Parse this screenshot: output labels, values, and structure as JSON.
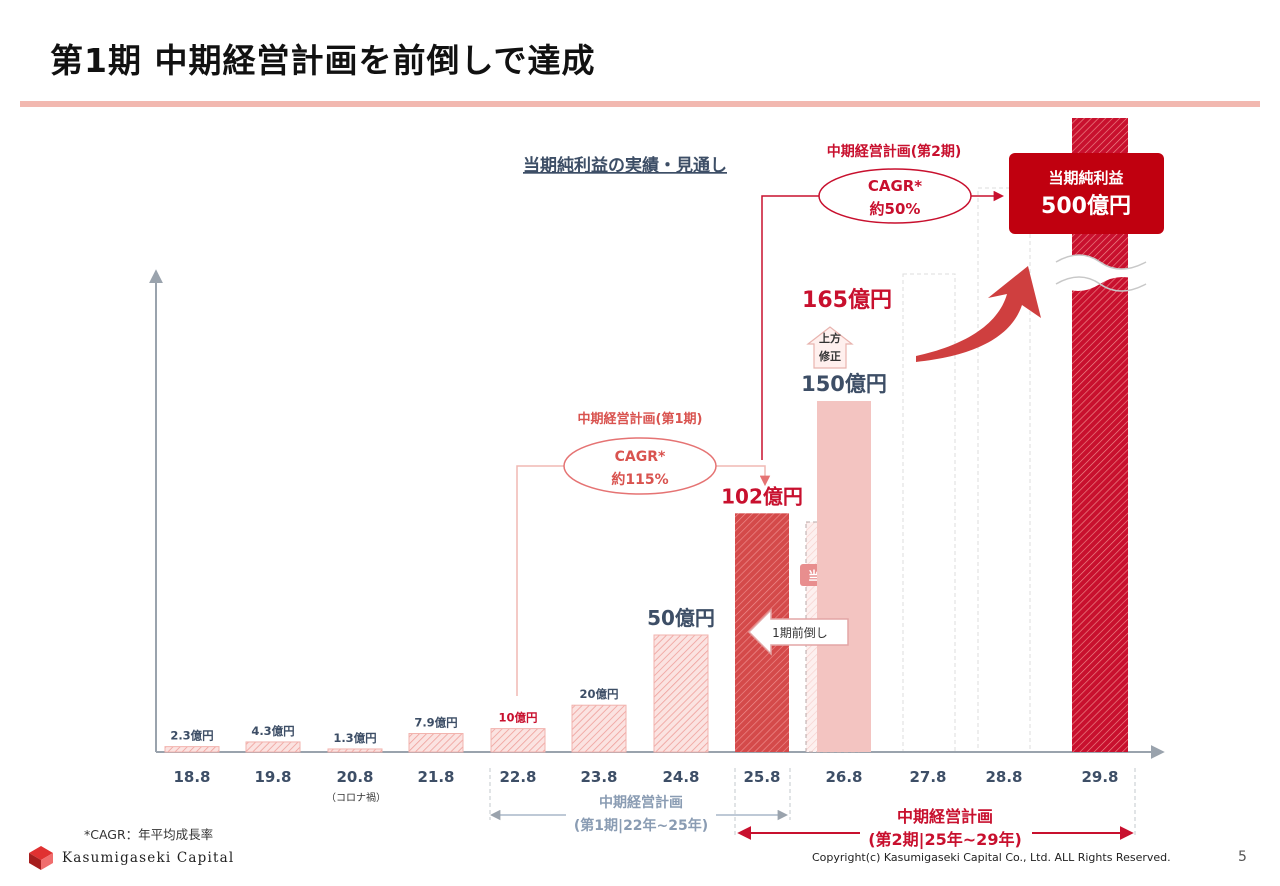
{
  "page": {
    "title": "第1期 中期経営計画を前倒しで達成",
    "footnote": "*CAGR：年平均成長率",
    "logo_text": "Kasumigaseki Capital",
    "copyright": "Copyright(c) Kasumigaseki Capital Co., Ltd. ALL Rights Reserved.",
    "page_number": "5"
  },
  "chart_data": {
    "type": "bar",
    "title": "当期純利益の実績・見通し",
    "unit": "億円",
    "categories": [
      "18.8",
      "19.8",
      "20.8",
      "21.8",
      "22.8",
      "23.8",
      "24.8",
      "25.8",
      "26.8",
      "27.8",
      "28.8",
      "29.8"
    ],
    "category_notes": {
      "20.8": "（コロナ禍）"
    },
    "series": [
      {
        "values": [
          2.3,
          4.3,
          1.3,
          7.9,
          10,
          20,
          50,
          102,
          150,
          null,
          null,
          500
        ]
      }
    ],
    "data_labels": [
      "2.3億円",
      "4.3億円",
      "1.3億円",
      "7.9億円",
      "10億円",
      "20億円",
      "50億円",
      "102億円",
      "150億円",
      "",
      "",
      ""
    ],
    "original_plan_label": "当初計画",
    "upward_revision": {
      "category": "26.8",
      "value": 165,
      "label": "165億円",
      "tag": "上方\n修正"
    },
    "pull_forward_label": "1期前倒し",
    "target": {
      "category": "29.8",
      "title": "当期純利益",
      "value_label": "500億円"
    },
    "plan1": {
      "title": "中期経営計画(第1期)",
      "cagr": "CAGR*",
      "rate": "約115%"
    },
    "plan2": {
      "title": "中期経営計画(第2期)",
      "cagr": "CAGR*",
      "rate": "約50%"
    },
    "period1": {
      "line1": "中期経営計画",
      "line2": "(第1期|22年~25年)"
    },
    "period2": {
      "line1": "中期経営計画",
      "line2": "(第2期|25年~29年)"
    },
    "colors": {
      "accent": "#c8102e",
      "plan1": "#d9534f",
      "light": "#f3c4c1",
      "axis": "#9aa3ad",
      "navy": "#3d4e66"
    }
  }
}
